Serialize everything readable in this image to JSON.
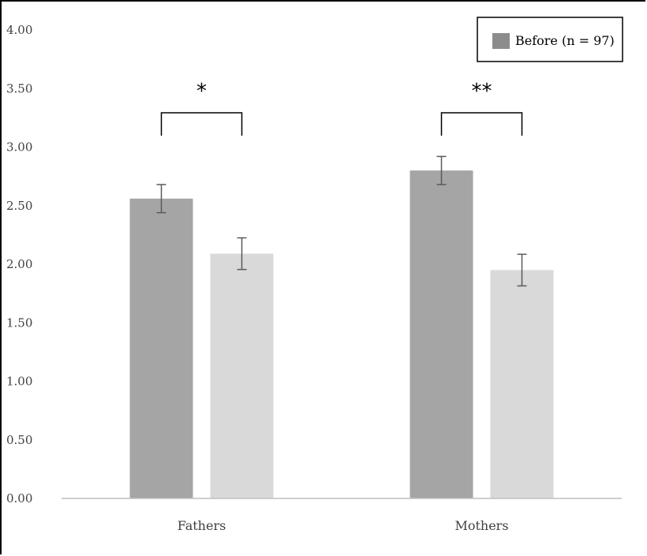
{
  "chart_data": {
    "type": "bar",
    "categories": [
      "Fathers",
      "Mothers"
    ],
    "series": [
      {
        "name": "Before (n = 97)",
        "values": [
          2.56,
          2.8
        ],
        "errors": [
          0.12,
          0.12
        ],
        "color": "#a5a5a5"
      },
      {
        "values": [
          2.09,
          1.95
        ],
        "errors": [
          0.135,
          0.135
        ],
        "color": "#d9d9d9"
      }
    ],
    "ylim": [
      0,
      4
    ],
    "yticks": [
      "0.00",
      "0.50",
      "1.00",
      "1.50",
      "2.00",
      "2.50",
      "3.00",
      "3.50",
      "4.00"
    ],
    "grid": false,
    "legend": {
      "placement": "top-right",
      "entries": [
        "Before (n = 97)"
      ]
    },
    "significance": [
      {
        "category": "Fathers",
        "label": "*"
      },
      {
        "category": "Mothers",
        "label": "**"
      }
    ],
    "legend_color": "#8c8c8c",
    "axis_color": "#bfbfbf"
  }
}
